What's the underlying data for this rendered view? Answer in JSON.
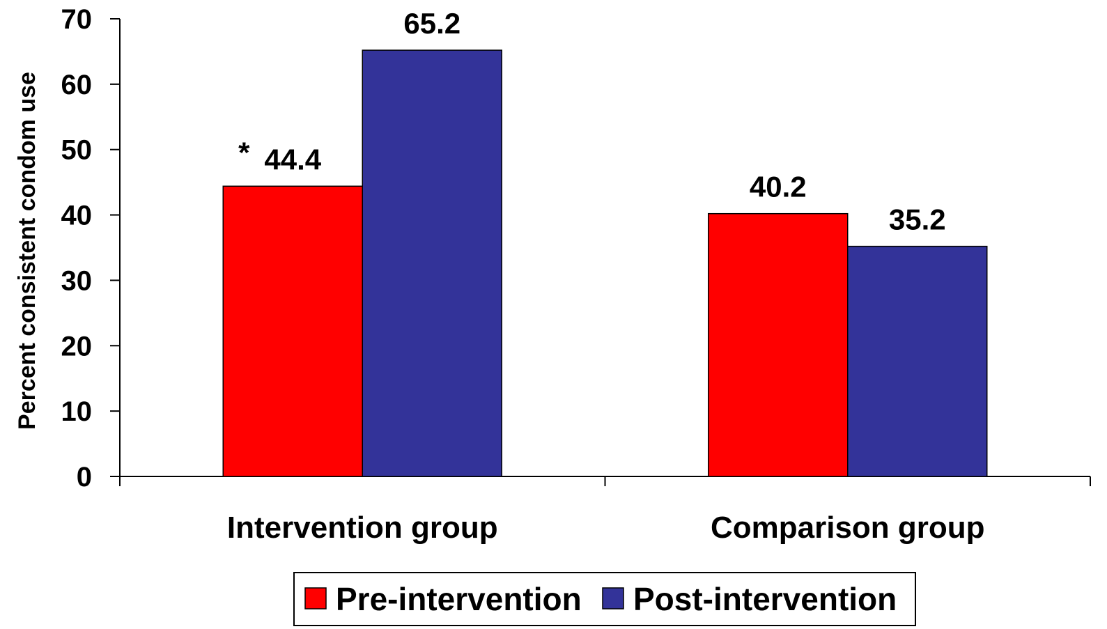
{
  "chart_data": {
    "type": "bar",
    "title": "",
    "xlabel": "",
    "ylabel": "Percent consistent condom use",
    "ylim": [
      0,
      70
    ],
    "yticks": [
      0,
      10,
      20,
      30,
      40,
      50,
      60,
      70
    ],
    "categories": [
      "Intervention group",
      "Comparison group"
    ],
    "series": [
      {
        "name": "Pre-intervention",
        "color": "#ff0000",
        "values": [
          44.4,
          40.2
        ],
        "labels": [
          "44.4",
          "40.2"
        ]
      },
      {
        "name": "Post-intervention",
        "color": "#333399",
        "values": [
          65.2,
          35.2
        ],
        "labels": [
          "65.2",
          "35.2"
        ]
      }
    ],
    "annotations": [
      {
        "text": "*",
        "category": "Intervention group",
        "series": "Pre-intervention"
      }
    ],
    "legend_position": "bottom",
    "grid": false
  }
}
